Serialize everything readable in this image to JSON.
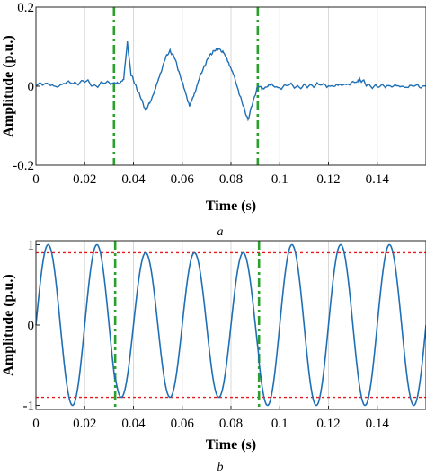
{
  "colors": {
    "signal": "#1f6fb4",
    "marker": "#2ca02c",
    "threshold": "#e41a1c",
    "grid": "#d9d9d9"
  },
  "chart_data": [
    {
      "type": "line",
      "panel_label": "a",
      "xlabel": "Time (s)",
      "ylabel": "Amplitude (p.u.)",
      "xlim": [
        0,
        0.16
      ],
      "ylim": [
        -0.2,
        0.2
      ],
      "x_ticks": [
        0,
        0.02,
        0.04,
        0.06,
        0.08,
        0.1,
        0.12,
        0.14
      ],
      "x_tick_labels": [
        "0",
        "0.02",
        "0.04",
        "0.06",
        "0.08",
        "0.1",
        "0.12",
        "0.14"
      ],
      "y_ticks": [
        -0.2,
        0,
        0.2
      ],
      "y_tick_labels": [
        "-0.2",
        "0",
        "0.2"
      ],
      "grid": "vertical",
      "vertical_markers": [
        0.032,
        0.091
      ],
      "series": [
        {
          "x": [
            0,
            0.004,
            0.008,
            0.012,
            0.016,
            0.02,
            0.024,
            0.028,
            0.032,
            0.034,
            0.036,
            0.0375,
            0.039,
            0.041,
            0.043,
            0.045,
            0.047,
            0.049,
            0.051,
            0.053,
            0.055,
            0.057,
            0.059,
            0.061,
            0.063,
            0.065,
            0.067,
            0.069,
            0.071,
            0.073,
            0.075,
            0.077,
            0.079,
            0.081,
            0.083,
            0.085,
            0.087,
            0.089,
            0.091,
            0.093,
            0.096,
            0.1,
            0.104,
            0.108,
            0.112,
            0.116,
            0.12,
            0.124,
            0.128,
            0.132,
            0.133,
            0.136,
            0.14,
            0.144,
            0.148,
            0.152,
            0.156,
            0.16
          ],
          "y": [
            0.002,
            0.01,
            -0.005,
            0.012,
            0.005,
            0.015,
            0.0,
            0.008,
            0.01,
            0.005,
            0.02,
            0.11,
            0.03,
            0.0,
            -0.03,
            -0.06,
            -0.04,
            -0.005,
            0.03,
            0.07,
            0.09,
            0.07,
            0.03,
            -0.01,
            -0.05,
            -0.02,
            0.02,
            0.05,
            0.075,
            0.09,
            0.095,
            0.085,
            0.06,
            0.03,
            -0.01,
            -0.05,
            -0.085,
            -0.04,
            0.0,
            -0.005,
            0.002,
            -0.003,
            0.003,
            -0.002,
            0.001,
            0.004,
            0.002,
            0.0,
            0.008,
            0.01,
            0.018,
            0.002,
            -0.002,
            0.003,
            -0.002,
            0.001,
            -0.001,
            0.0
          ]
        }
      ]
    },
    {
      "type": "line",
      "panel_label": "b",
      "xlabel": "Time (s)",
      "ylabel": "Amplitude (p.u.)",
      "xlim": [
        0,
        0.16
      ],
      "ylim": [
        -1.05,
        1.05
      ],
      "x_ticks": [
        0,
        0.02,
        0.04,
        0.06,
        0.08,
        0.1,
        0.12,
        0.14
      ],
      "x_tick_labels": [
        "0",
        "0.02",
        "0.04",
        "0.06",
        "0.08",
        "0.1",
        "0.12",
        "0.14"
      ],
      "y_ticks": [
        -1,
        0,
        1
      ],
      "y_tick_labels": [
        "-1",
        "0",
        "1"
      ],
      "grid": "vertical",
      "vertical_markers": [
        0.0325,
        0.0915
      ],
      "horizontal_thresholds": [
        0.9,
        -0.9
      ],
      "series": [
        {
          "frequency_hz": 50,
          "amplitude": 1.0,
          "sag_window": [
            0.0325,
            0.0915
          ],
          "sag_amplitude": 0.9
        }
      ]
    }
  ]
}
